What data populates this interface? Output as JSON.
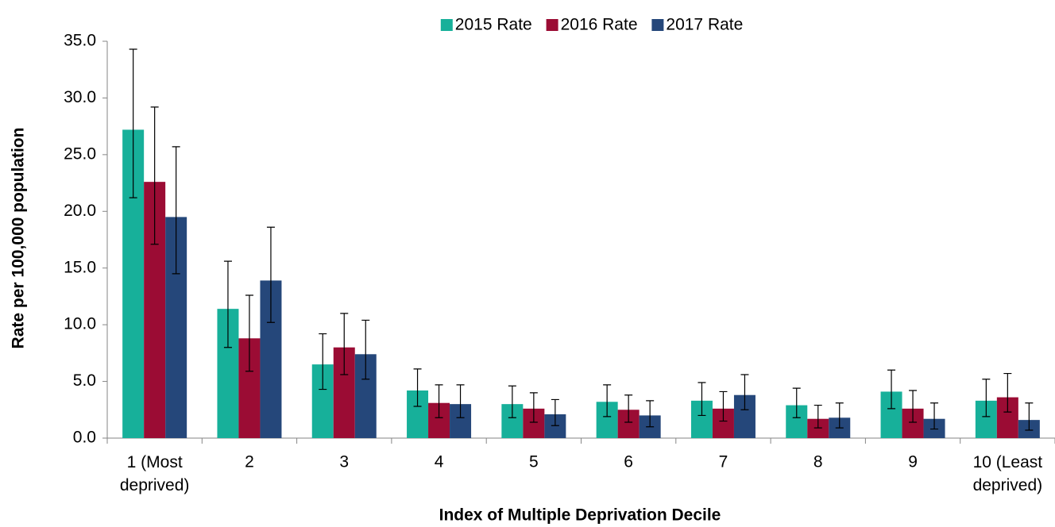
{
  "chart_data": {
    "type": "bar",
    "x_label": "Index of Multiple Deprivation Decile",
    "y_label": "Rate per 100,000 population",
    "categories": [
      "1 (Most deprived)",
      "2",
      "3",
      "4",
      "5",
      "6",
      "7",
      "8",
      "9",
      "10 (Least deprived)"
    ],
    "series": [
      {
        "name": "2015 Rate",
        "color": "#17b09a",
        "values": [
          27.2,
          11.4,
          6.5,
          4.2,
          3.0,
          3.2,
          3.3,
          2.9,
          4.1,
          3.3
        ],
        "ci_lower": [
          21.2,
          8.0,
          4.3,
          2.8,
          1.8,
          1.9,
          2.0,
          1.8,
          2.6,
          1.9
        ],
        "ci_upper": [
          34.3,
          15.6,
          9.2,
          6.1,
          4.6,
          4.7,
          4.9,
          4.4,
          6.0,
          5.2
        ]
      },
      {
        "name": "2016 Rate",
        "color": "#9b0c34",
        "values": [
          22.6,
          8.8,
          8.0,
          3.1,
          2.6,
          2.5,
          2.6,
          1.7,
          2.6,
          3.6
        ],
        "ci_lower": [
          17.1,
          5.9,
          5.6,
          1.8,
          1.4,
          1.4,
          1.5,
          0.9,
          1.4,
          2.3
        ],
        "ci_upper": [
          29.2,
          12.6,
          11.0,
          4.7,
          4.0,
          3.8,
          4.1,
          2.9,
          4.2,
          5.7
        ]
      },
      {
        "name": "2017 Rate",
        "color": "#25477a",
        "values": [
          19.5,
          13.9,
          7.4,
          3.0,
          2.1,
          2.0,
          3.8,
          1.8,
          1.7,
          1.6
        ],
        "ci_lower": [
          14.5,
          10.2,
          5.2,
          1.8,
          1.1,
          1.0,
          2.5,
          0.9,
          0.8,
          0.7
        ],
        "ci_upper": [
          25.7,
          18.6,
          10.4,
          4.7,
          3.4,
          3.3,
          5.6,
          3.1,
          3.1,
          3.1
        ]
      }
    ],
    "ylim": [
      0,
      35
    ],
    "yticks": [
      {
        "value": 0,
        "label": "0.0"
      },
      {
        "value": 5,
        "label": "5.0"
      },
      {
        "value": 10,
        "label": "10.0"
      },
      {
        "value": 15,
        "label": "15.0"
      },
      {
        "value": 20,
        "label": "20.0"
      },
      {
        "value": 25,
        "label": "25.0"
      },
      {
        "value": 30,
        "label": "30.0"
      },
      {
        "value": 35,
        "label": "35.0"
      }
    ],
    "legend": "top",
    "grid": false
  }
}
